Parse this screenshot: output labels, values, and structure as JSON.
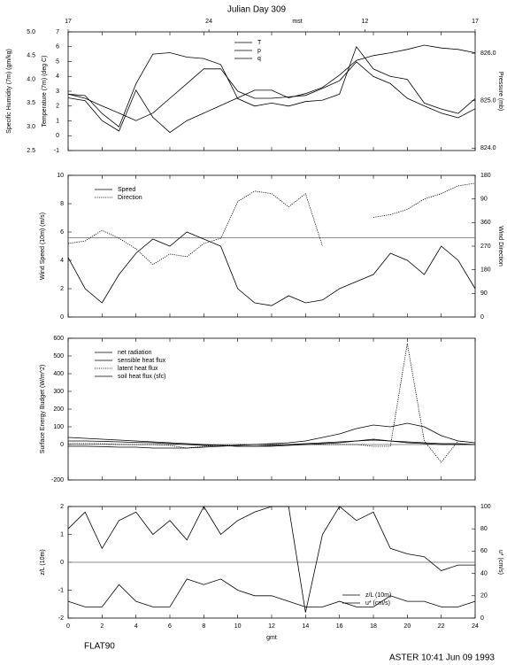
{
  "title": "Julian Day 309",
  "footer": {
    "left": "FLAT90",
    "right": "ASTER 10:41 Jun 09 1993"
  },
  "chart_data": [
    {
      "type": "line",
      "xlim": [
        0,
        24
      ],
      "x2ticks": [
        {
          "value": 0,
          "label": "17"
        },
        {
          "value": 8.3,
          "label": "24"
        },
        {
          "value": 17.5,
          "label": "12"
        },
        {
          "value": 24,
          "label": "17"
        }
      ],
      "x2label": "mst",
      "ylabel": "Temperature (7m) (deg C)",
      "ylim": [
        -1,
        7
      ],
      "yticks": [
        -1,
        0,
        1,
        2,
        3,
        4,
        5,
        6,
        7
      ],
      "y2label": "Pressure (mb)",
      "y2lim": [
        823.95,
        826.45
      ],
      "y2ticks": [
        {
          "value": 824,
          "label": "824.0"
        },
        {
          "value": 825,
          "label": "825.0"
        },
        {
          "value": 826,
          "label": "826.0"
        }
      ],
      "y3label": "Specific Humidity (7m) (gm/kg)",
      "y3lim": [
        2.5,
        5.0
      ],
      "y3ticks": [
        2.5,
        {
          "value": 3,
          "label": "3.0"
        },
        3.5,
        {
          "value": 4,
          "label": "4.0"
        },
        4.5,
        {
          "value": 5,
          "label": "5.0"
        }
      ],
      "legend": "top-center",
      "x": [
        0,
        1,
        2,
        3,
        4,
        5,
        6,
        7,
        8,
        9,
        10,
        11,
        12,
        13,
        14,
        15,
        16,
        17,
        18,
        19,
        20,
        21,
        22,
        23,
        24
      ],
      "series": [
        {
          "name": "T",
          "axis": "y",
          "color": "#000000",
          "style": "solid",
          "values": [
            2.8,
            2.7,
            1.5,
            0.6,
            3.5,
            5.5,
            5.6,
            5.3,
            5.2,
            4.8,
            2.5,
            2.0,
            2.2,
            2.0,
            2.3,
            2.4,
            2.8,
            6.0,
            4.5,
            4.0,
            3.8,
            2.2,
            1.8,
            1.5,
            2.5
          ]
        },
        {
          "name": "p",
          "axis": "y2",
          "color": "#000000",
          "style": "solid",
          "values": [
            825.14,
            825.05,
            824.89,
            824.74,
            824.58,
            824.74,
            825.05,
            825.36,
            825.67,
            825.67,
            825.2,
            825.05,
            825.05,
            825.08,
            825.11,
            825.26,
            825.42,
            825.82,
            825.51,
            825.36,
            825.05,
            824.89,
            824.74,
            824.64,
            824.83
          ]
        },
        {
          "name": "q",
          "axis": "y3",
          "color": "#000000",
          "style": "solid",
          "values": [
            3.61,
            3.55,
            3.13,
            2.91,
            3.77,
            3.2,
            2.88,
            3.13,
            3.29,
            3.45,
            3.61,
            3.77,
            3.77,
            3.61,
            3.7,
            3.83,
            4.09,
            4.4,
            4.5,
            4.56,
            4.63,
            4.72,
            4.66,
            4.63,
            4.56
          ]
        }
      ]
    },
    {
      "type": "line",
      "xlim": [
        0,
        24
      ],
      "ylabel": "Wind Speed (10m) (m/s)",
      "ylim": [
        0,
        10
      ],
      "yticks": [
        0,
        2,
        4,
        6,
        8,
        10
      ],
      "y2label": "Wind Direction",
      "y2lim": [
        0,
        540
      ],
      "y2ticks": [
        0,
        90,
        180,
        270,
        360,
        {
          "value": 450,
          "label": "90"
        },
        {
          "value": 540,
          "label": "180"
        }
      ],
      "hline": 5.6,
      "legend": "top-left",
      "x": [
        0,
        1,
        2,
        3,
        4,
        5,
        6,
        7,
        8,
        9,
        10,
        11,
        12,
        13,
        14,
        15,
        16,
        17,
        18,
        19,
        20,
        21,
        22,
        23,
        24
      ],
      "series": [
        {
          "name": "Speed",
          "axis": "y",
          "color": "#000000",
          "style": "solid",
          "values": [
            4.2,
            2.0,
            1.0,
            3.0,
            4.5,
            5.5,
            5.0,
            6.0,
            5.5,
            5.0,
            2.0,
            1.0,
            0.8,
            1.5,
            1.0,
            1.2,
            2.0,
            2.5,
            3.0,
            4.5,
            4.0,
            3.0,
            5.0,
            4.0,
            2.0
          ]
        },
        {
          "name": "Direction",
          "axis": "y2",
          "color": "#000000",
          "style": "dotted",
          "values": [
            280,
            290,
            330,
            300,
            260,
            200,
            240,
            230,
            280,
            300,
            440,
            480,
            470,
            420,
            470,
            270,
            null,
            null,
            380,
            390,
            410,
            450,
            470,
            500,
            510
          ]
        }
      ]
    },
    {
      "type": "line",
      "xlim": [
        0,
        24
      ],
      "ylabel": "Surface Energy Budget (W/m^2)",
      "ylim": [
        -200,
        600
      ],
      "yticks": [
        -200,
        0,
        100,
        200,
        300,
        400,
        500,
        600
      ],
      "hline": 0,
      "legend": "top-left",
      "x": [
        0,
        1,
        2,
        3,
        4,
        5,
        6,
        7,
        8,
        9,
        10,
        11,
        12,
        13,
        14,
        15,
        16,
        17,
        18,
        19,
        20,
        21,
        22,
        23,
        24
      ],
      "series": [
        {
          "name": "net radiation",
          "axis": "y",
          "color": "#000000",
          "style": "solid",
          "values": [
            -10,
            -10,
            -12,
            -15,
            -15,
            -20,
            -20,
            -20,
            -15,
            -10,
            -5,
            0,
            5,
            10,
            20,
            40,
            60,
            90,
            110,
            100,
            120,
            100,
            50,
            20,
            10
          ]
        },
        {
          "name": "sensible heat flux",
          "axis": "y",
          "color": "#000000",
          "style": "solid",
          "values": [
            40,
            35,
            30,
            25,
            20,
            15,
            10,
            5,
            0,
            -5,
            -10,
            -10,
            -10,
            -5,
            0,
            5,
            10,
            20,
            30,
            20,
            10,
            5,
            0,
            0,
            0
          ]
        },
        {
          "name": "latent heat flux",
          "axis": "y",
          "color": "#000000",
          "style": "dotted",
          "values": [
            5,
            5,
            5,
            0,
            0,
            0,
            -5,
            -20,
            -10,
            -5,
            0,
            0,
            0,
            0,
            0,
            0,
            0,
            0,
            -10,
            -10,
            570,
            20,
            -100,
            20,
            10
          ]
        },
        {
          "name": "soil heat flux (sfc)",
          "axis": "y",
          "color": "#000000",
          "style": "solid",
          "values": [
            20,
            20,
            18,
            15,
            12,
            10,
            5,
            0,
            -5,
            -5,
            -10,
            -10,
            -5,
            0,
            5,
            10,
            15,
            20,
            25,
            20,
            15,
            10,
            5,
            5,
            0
          ]
        }
      ]
    },
    {
      "type": "line",
      "xlim": [
        0,
        24
      ],
      "xlabel": "gmt",
      "xticks": [
        0,
        2,
        4,
        6,
        8,
        10,
        12,
        14,
        16,
        18,
        20,
        22,
        24
      ],
      "ylabel": "z/L (10m)",
      "ylim": [
        -2,
        2
      ],
      "yticks": [
        -2,
        -1,
        0,
        1,
        2
      ],
      "y2label": "u* (cm/s)",
      "y2lim": [
        0,
        100
      ],
      "y2ticks": [
        0,
        20,
        40,
        60,
        80,
        100
      ],
      "hline": 0,
      "legend": "bottom-right",
      "x": [
        0,
        1,
        2,
        3,
        4,
        5,
        6,
        7,
        8,
        9,
        10,
        11,
        12,
        13,
        14,
        15,
        16,
        17,
        18,
        19,
        20,
        21,
        22,
        23,
        24
      ],
      "series": [
        {
          "name": "z/L (10m)",
          "axis": "y",
          "color": "#000000",
          "style": "solid",
          "values": [
            1.2,
            1.8,
            0.5,
            1.5,
            1.8,
            1.0,
            1.5,
            0.8,
            2.0,
            1.0,
            1.5,
            1.8,
            2.0,
            2.0,
            -1.8,
            1.0,
            2.0,
            1.5,
            1.8,
            0.5,
            0.3,
            0.2,
            -0.3,
            -0.1,
            -0.1
          ]
        },
        {
          "name": "u* (cm/s)",
          "axis": "y2",
          "color": "#000000",
          "style": "solid",
          "values": [
            15,
            10,
            10,
            30,
            15,
            10,
            10,
            35,
            30,
            35,
            25,
            20,
            20,
            15,
            10,
            10,
            15,
            10,
            10,
            20,
            15,
            15,
            10,
            10,
            15
          ]
        }
      ]
    }
  ]
}
